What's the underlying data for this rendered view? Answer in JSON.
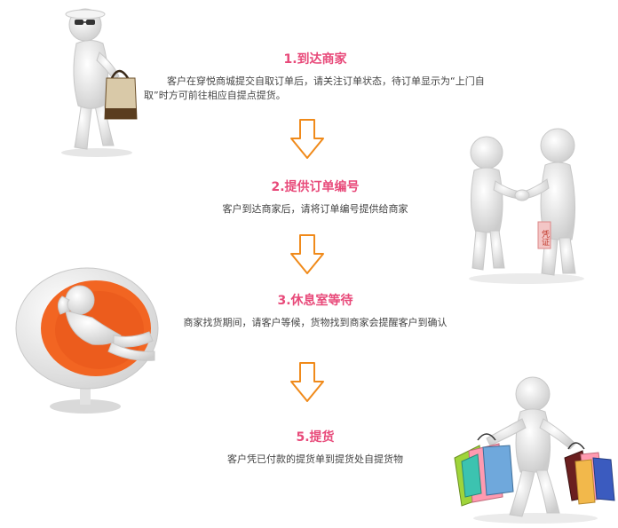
{
  "steps": [
    {
      "title": "1.到达商家",
      "description": "客户在穿悦商城提交自取订单后，请关注订单状态，待订单显示为“上门自取”时方可前往相应自提点提货。"
    },
    {
      "title": "2.提供订单编号",
      "description": "客户到达商家后，请将订单编号提供给商家"
    },
    {
      "title": "3.休息室等待",
      "description": "商家找货期间，请客户等候，货物找到商家会提醒客户到确认"
    },
    {
      "title": "5.提货",
      "description": "客户凭已付款的提货单到提货处自提货物"
    }
  ],
  "illustrations": {
    "figure1": "shopper-with-handbag-figure",
    "figure2": "handshake-figures",
    "figure3": "egg-chair-resting-figure",
    "figure4": "shopping-bags-figure",
    "ticket_text": "凭证"
  },
  "colors": {
    "title": "#e84a7a",
    "arrow": "#f08a1a",
    "figure": "#eeeeee",
    "chair": "#f26522"
  }
}
